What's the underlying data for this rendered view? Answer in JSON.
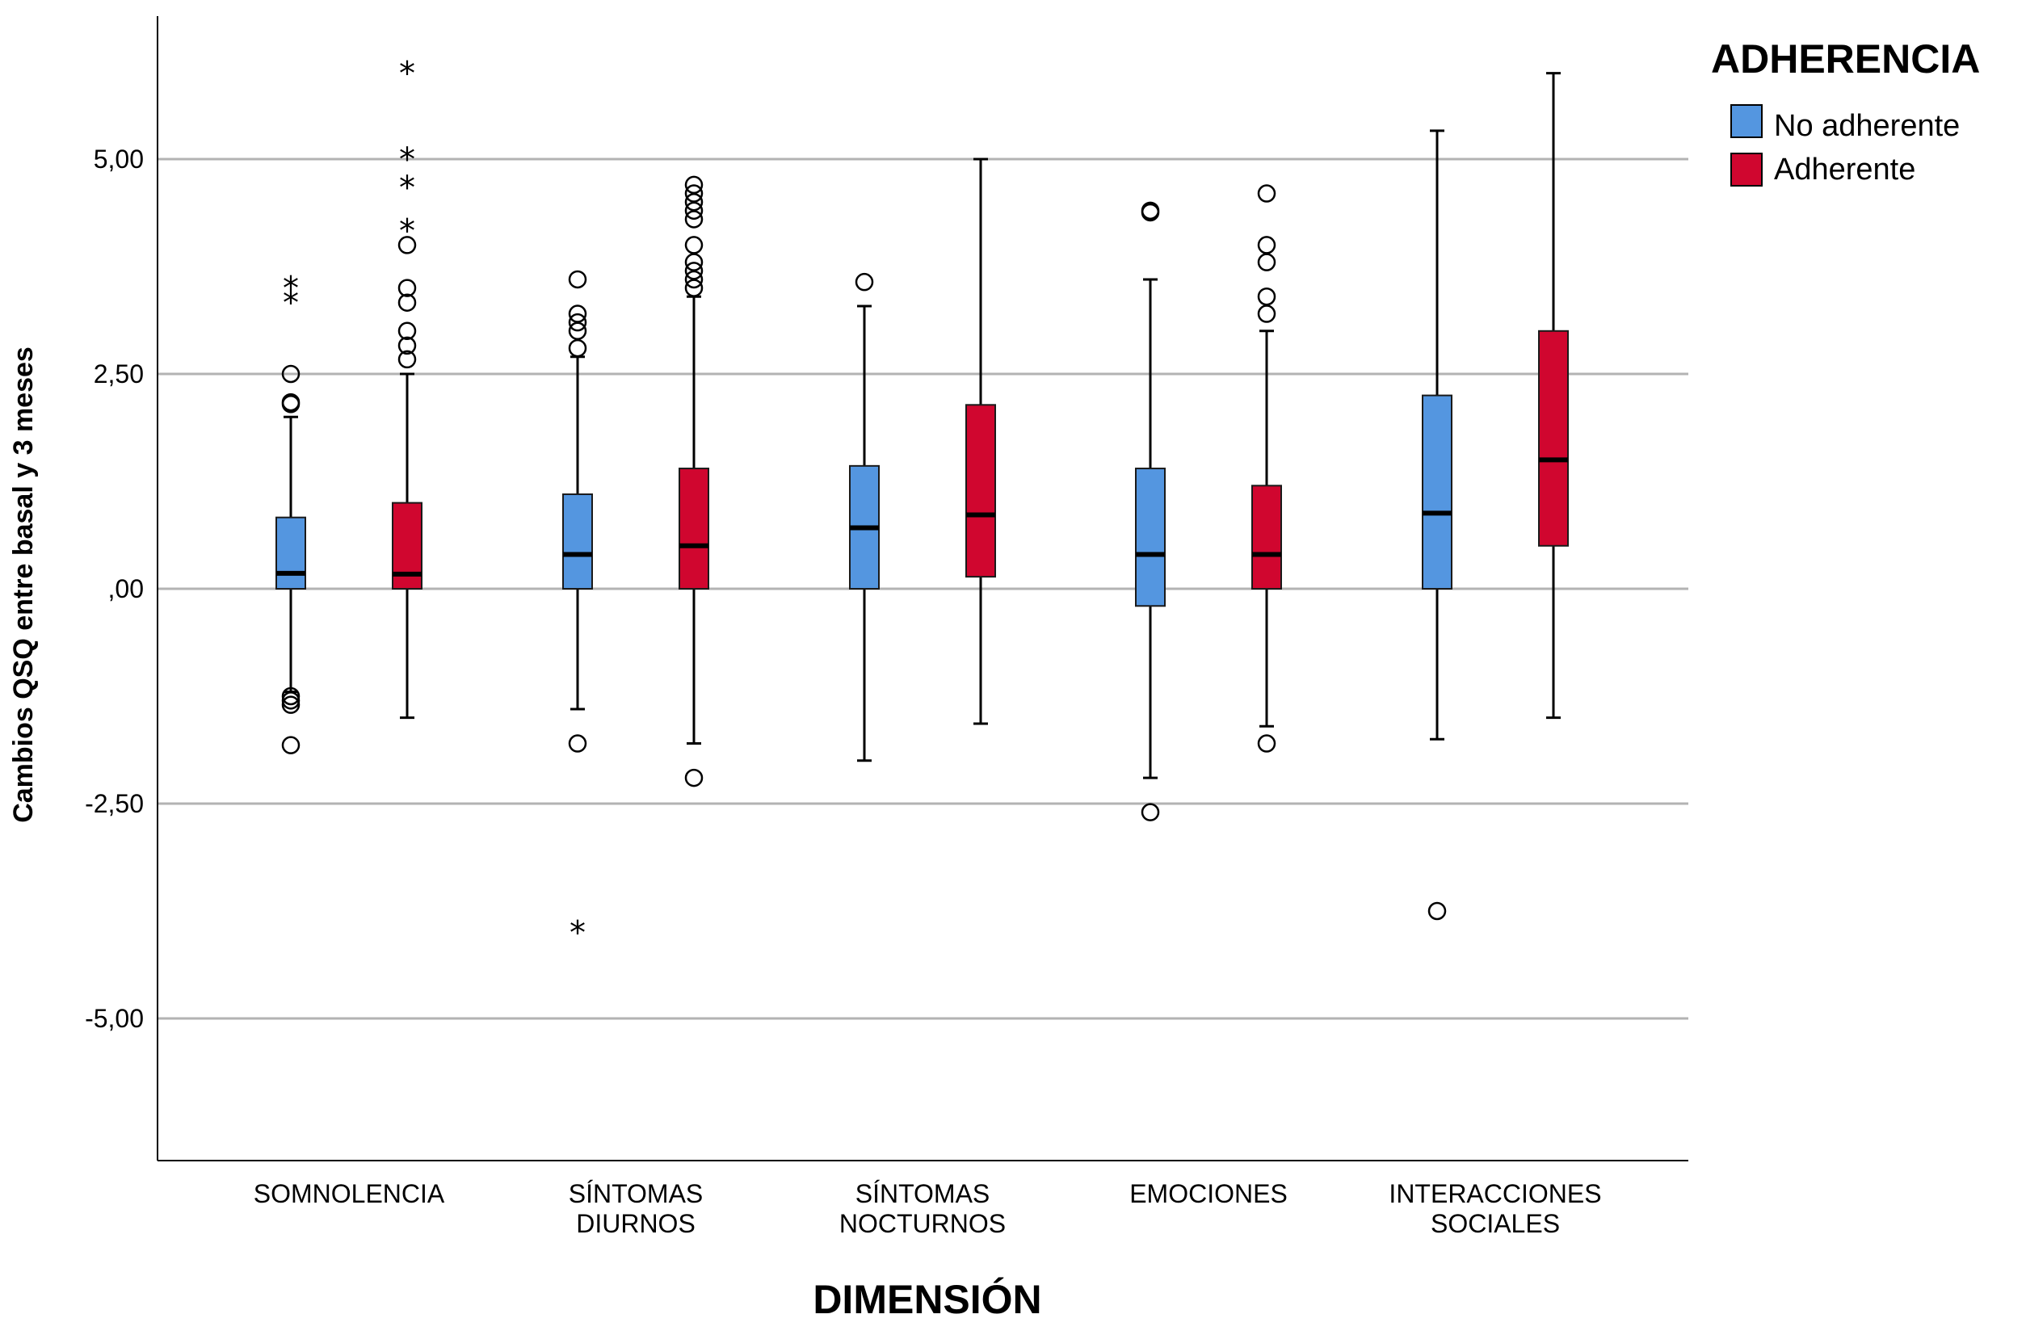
{
  "chart_data": {
    "type": "boxplot",
    "title": "",
    "xlabel": "DIMENSIÓN",
    "ylabel": "Cambios QSQ entre basal y 3 meses",
    "ylim": [
      -6.6,
      6.6
    ],
    "yticks": [
      5,
      2.5,
      0,
      -2.5,
      -5
    ],
    "ytick_labels": [
      "5,00",
      "2,50",
      ",00",
      "-2,50",
      "-5,00"
    ],
    "categories": [
      {
        "lines": [
          "SOMNOLENCIA"
        ]
      },
      {
        "lines": [
          "SÍNTOMAS",
          "DIURNOS"
        ]
      },
      {
        "lines": [
          "SÍNTOMAS",
          "NOCTURNOS"
        ]
      },
      {
        "lines": [
          "EMOCIONES"
        ]
      },
      {
        "lines": [
          "INTERACCIONES",
          "SOCIALES"
        ]
      }
    ],
    "legend": {
      "title": "ADHERENCIA",
      "position": "top-right",
      "entries": [
        {
          "label": "No adherente",
          "color": "#5496E0"
        },
        {
          "label": "Adherente",
          "color": "#D0062F"
        }
      ]
    },
    "series": [
      {
        "name": "No adherente",
        "color": "#5496E0",
        "boxes": [
          {
            "whisker_low": -1.2,
            "q1": 0.0,
            "median": 0.18,
            "q3": 0.83,
            "whisker_high": 2.0,
            "outliers": [
              2.5,
              2.17,
              2.15,
              -1.25,
              -1.3,
              -1.35,
              -1.82
            ],
            "extremes": [
              3.5,
              3.33
            ]
          },
          {
            "whisker_low": -1.4,
            "q1": 0.0,
            "median": 0.4,
            "q3": 1.1,
            "whisker_high": 2.7,
            "outliers": [
              3.6,
              3.2,
              3.1,
              3.0,
              2.8,
              -1.8
            ],
            "extremes": [
              -4.0
            ]
          },
          {
            "whisker_low": -2.0,
            "q1": 0.0,
            "median": 0.71,
            "q3": 1.43,
            "whisker_high": 3.29,
            "outliers": [
              3.57
            ],
            "extremes": []
          },
          {
            "whisker_low": -2.2,
            "q1": -0.2,
            "median": 0.4,
            "q3": 1.4,
            "whisker_high": 3.6,
            "outliers": [
              4.4,
              4.38,
              -2.6
            ],
            "extremes": []
          },
          {
            "whisker_low": -1.75,
            "q1": 0.0,
            "median": 0.88,
            "q3": 2.25,
            "whisker_high": 5.33,
            "outliers": [
              -3.75
            ],
            "extremes": []
          }
        ]
      },
      {
        "name": "Adherente",
        "color": "#D0062F",
        "boxes": [
          {
            "whisker_low": -1.5,
            "q1": 0.0,
            "median": 0.17,
            "q3": 1.0,
            "whisker_high": 2.5,
            "outliers": [
              4.0,
              3.5,
              3.33,
              3.0,
              2.83,
              2.67
            ],
            "extremes": [
              6.0,
              5.0,
              4.67,
              4.17
            ]
          },
          {
            "whisker_low": -1.8,
            "q1": 0.0,
            "median": 0.5,
            "q3": 1.4,
            "whisker_high": 3.4,
            "outliers": [
              4.7,
              4.6,
              4.5,
              4.4,
              4.3,
              4.0,
              3.8,
              3.7,
              3.6,
              3.5,
              -2.2
            ],
            "extremes": []
          },
          {
            "whisker_low": -1.57,
            "q1": 0.14,
            "median": 0.86,
            "q3": 2.14,
            "whisker_high": 5.0,
            "outliers": [],
            "extremes": []
          },
          {
            "whisker_low": -1.6,
            "q1": 0.0,
            "median": 0.4,
            "q3": 1.2,
            "whisker_high": 3.0,
            "outliers": [
              4.6,
              4.0,
              3.8,
              3.4,
              3.2,
              -1.8
            ],
            "extremes": []
          },
          {
            "whisker_low": -1.5,
            "q1": 0.5,
            "median": 1.5,
            "q3": 3.0,
            "whisker_high": 6.0,
            "outliers": [],
            "extremes": []
          }
        ]
      }
    ]
  }
}
